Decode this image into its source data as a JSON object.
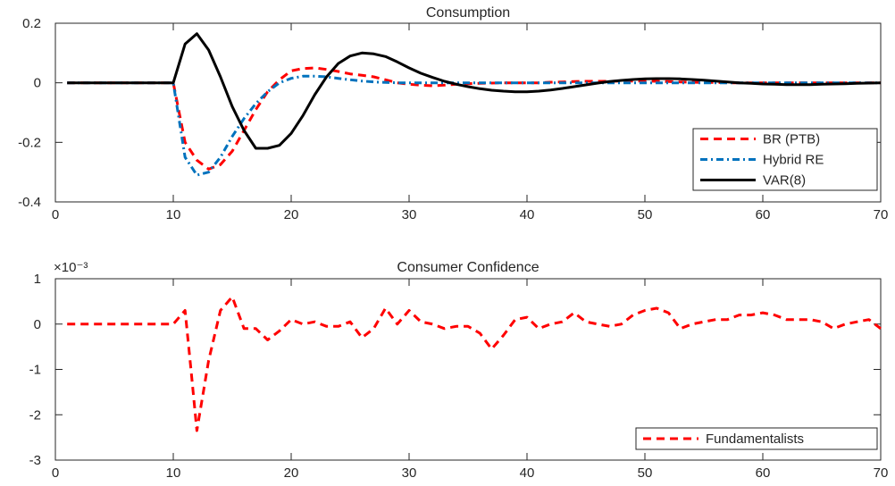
{
  "chart_data": [
    {
      "type": "line",
      "title": "Consumption",
      "xlim": [
        0,
        70
      ],
      "ylim": [
        -0.4,
        0.2
      ],
      "xticks": [
        "0",
        "10",
        "20",
        "30",
        "40",
        "50",
        "60",
        "70"
      ],
      "yticks": [
        "0.2",
        "0",
        "-0.2",
        "-0.4"
      ],
      "legend_position": "bottom-right",
      "series": [
        {
          "name": "BR (PTB)",
          "color": "#ff0000",
          "style": "dashed",
          "x": [
            1,
            10,
            11,
            12,
            13,
            14,
            15,
            16,
            17,
            18,
            19,
            20,
            21,
            22,
            23,
            24,
            25,
            26,
            27,
            28,
            29,
            30,
            31,
            32,
            33,
            34,
            35,
            36,
            37,
            38,
            39,
            40,
            41,
            42,
            43,
            44,
            45,
            46,
            47,
            48,
            49,
            50,
            51,
            52,
            53,
            54,
            55,
            56,
            57,
            58,
            59,
            60,
            61,
            62,
            63,
            64,
            65,
            66,
            67,
            68,
            69,
            70
          ],
          "y": [
            0,
            0,
            -0.2,
            -0.26,
            -0.29,
            -0.275,
            -0.23,
            -0.16,
            -0.09,
            -0.03,
            0.01,
            0.04,
            0.048,
            0.05,
            0.045,
            0.038,
            0.03,
            0.025,
            0.02,
            0.01,
            0.0,
            -0.005,
            -0.008,
            -0.01,
            -0.008,
            -0.005,
            -0.003,
            -0.002,
            -0.001,
            0,
            0,
            0,
            0,
            0.002,
            0.003,
            0.004,
            0.005,
            0.005,
            0.005,
            0.006,
            0.006,
            0.006,
            0.005,
            0.004,
            0.003,
            0.002,
            0.001,
            0.001,
            0,
            0,
            0,
            0,
            0,
            0,
            0,
            0,
            0,
            0,
            0,
            0,
            0,
            0
          ]
        },
        {
          "name": "Hybrid RE",
          "color": "#0072bd",
          "style": "dashdot",
          "x": [
            1,
            10,
            11,
            12,
            13,
            14,
            15,
            16,
            17,
            18,
            19,
            20,
            21,
            22,
            23,
            24,
            25,
            26,
            27,
            28,
            29,
            30,
            32,
            34,
            36,
            38,
            40,
            45,
            50,
            55,
            60,
            65,
            70
          ],
          "y": [
            0,
            0,
            -0.25,
            -0.31,
            -0.3,
            -0.25,
            -0.18,
            -0.12,
            -0.07,
            -0.03,
            0.0,
            0.015,
            0.022,
            0.022,
            0.02,
            0.015,
            0.01,
            0.006,
            0.003,
            0.001,
            0,
            0,
            0,
            0,
            0,
            0,
            0,
            0,
            0,
            0,
            0,
            0,
            0
          ]
        },
        {
          "name": "VAR(8)",
          "color": "#000000",
          "style": "solid",
          "x": [
            1,
            10,
            11,
            12,
            13,
            14,
            15,
            16,
            17,
            18,
            19,
            20,
            21,
            22,
            23,
            24,
            25,
            26,
            27,
            28,
            29,
            30,
            31,
            32,
            33,
            34,
            35,
            36,
            37,
            38,
            39,
            40,
            41,
            42,
            43,
            44,
            45,
            46,
            47,
            48,
            49,
            50,
            51,
            52,
            53,
            54,
            55,
            56,
            57,
            58,
            59,
            60,
            61,
            62,
            63,
            64,
            65,
            66,
            67,
            68,
            69,
            70
          ],
          "y": [
            0,
            0,
            0.13,
            0.165,
            0.11,
            0.02,
            -0.08,
            -0.16,
            -0.22,
            -0.22,
            -0.21,
            -0.17,
            -0.11,
            -0.04,
            0.02,
            0.065,
            0.09,
            0.1,
            0.097,
            0.088,
            0.07,
            0.05,
            0.032,
            0.018,
            0.005,
            -0.005,
            -0.013,
            -0.02,
            -0.025,
            -0.028,
            -0.03,
            -0.03,
            -0.028,
            -0.024,
            -0.019,
            -0.013,
            -0.007,
            -0.001,
            0.004,
            0.008,
            0.011,
            0.013,
            0.014,
            0.014,
            0.013,
            0.011,
            0.009,
            0.006,
            0.003,
            0.0,
            -0.002,
            -0.004,
            -0.005,
            -0.006,
            -0.006,
            -0.006,
            -0.005,
            -0.004,
            -0.003,
            -0.002,
            -0.001,
            0.0
          ]
        }
      ]
    },
    {
      "type": "line",
      "title": "Consumer Confidence",
      "exponent_label": "×10⁻³",
      "xlim": [
        0,
        70
      ],
      "ylim": [
        -3,
        1
      ],
      "xticks": [
        "0",
        "10",
        "20",
        "30",
        "40",
        "50",
        "60",
        "70"
      ],
      "yticks": [
        "1",
        "0",
        "-1",
        "-2",
        "-3"
      ],
      "legend_position": "bottom-right",
      "series": [
        {
          "name": "Fundamentalists",
          "color": "#ff0000",
          "style": "dashed",
          "x": [
            1,
            10,
            11,
            11.5,
            12,
            13,
            14,
            15,
            16,
            17,
            18,
            19,
            20,
            21,
            22,
            23,
            24,
            25,
            26,
            27,
            28,
            29,
            30,
            31,
            32,
            33,
            34,
            35,
            36,
            37,
            38,
            39,
            40,
            41,
            42,
            43,
            44,
            45,
            46,
            47,
            48,
            49,
            50,
            51,
            52,
            53,
            54,
            55,
            56,
            57,
            58,
            59,
            60,
            61,
            62,
            63,
            64,
            65,
            66,
            67,
            68,
            69,
            70
          ],
          "y": [
            0,
            0,
            0.3,
            -1.0,
            -2.35,
            -0.8,
            0.3,
            0.6,
            -0.1,
            -0.1,
            -0.35,
            -0.15,
            0.1,
            0.0,
            0.05,
            -0.05,
            -0.05,
            0.05,
            -0.3,
            -0.1,
            0.35,
            0.0,
            0.3,
            0.05,
            0.0,
            -0.1,
            -0.05,
            -0.05,
            -0.2,
            -0.55,
            -0.25,
            0.1,
            0.15,
            -0.1,
            0.0,
            0.05,
            0.25,
            0.05,
            0.0,
            -0.05,
            0.0,
            0.2,
            0.3,
            0.35,
            0.25,
            -0.1,
            0.0,
            0.05,
            0.1,
            0.1,
            0.2,
            0.2,
            0.25,
            0.2,
            0.1,
            0.1,
            0.1,
            0.05,
            -0.1,
            0.0,
            0.05,
            0.1,
            -0.1
          ]
        }
      ]
    }
  ]
}
